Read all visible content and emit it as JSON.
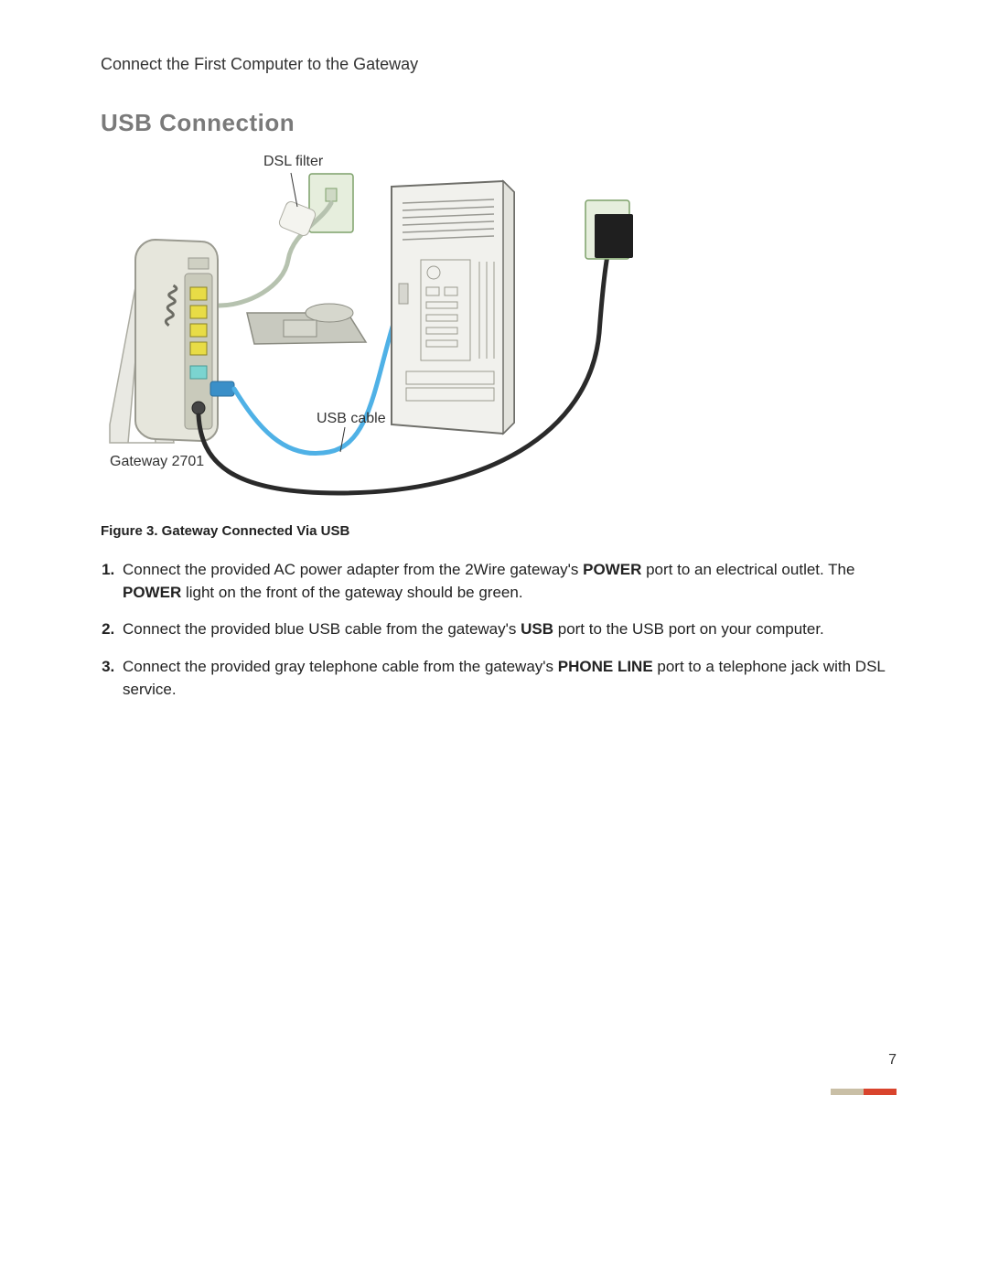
{
  "breadcrumb": "Connect the First Computer to the Gateway",
  "section_title": "USB Connection",
  "figure": {
    "labels": {
      "dsl_filter": "DSL filter",
      "usb_cable": "USB cable",
      "gateway": "Gateway 2701"
    },
    "caption": "Figure 3. Gateway Connected Via USB",
    "colors": {
      "gateway_body": "#e6e6dc",
      "gateway_outline": "#9a9a90",
      "ports_bg": "#c9cabb",
      "port_yellow": "#e8dc46",
      "port_teal": "#7bd4d0",
      "usb_cable": "#4fb1e6",
      "power_cable": "#2a2a2a",
      "dsl_cable": "#b6c2af",
      "pc_body": "#f1f1ed",
      "pc_outline": "#6f6f6a",
      "pc_grill": "#999993",
      "wall_plate": "#e6eedd",
      "wall_plate_outline": "#7da06a",
      "power_adapter": "#1f1f1f",
      "stand": "#e9e9e3",
      "stand_outline": "#acaca2",
      "phone_base": "#c8c9bf",
      "phone_outline": "#8b8c82",
      "label_text": "#333333"
    },
    "label_fontsize": 16
  },
  "steps": {
    "items": [
      {
        "prefix": "Connect the provided AC power adapter from the 2Wire gateway's ",
        "bold1": "POWER",
        "mid1": " port to an electrical outlet. The ",
        "bold2": "POWER",
        "suffix": " light on the front of the gateway should be green."
      },
      {
        "prefix": "Connect the provided blue USB cable from the gateway's ",
        "bold1": "USB",
        "mid1": " port to the USB port on your computer.",
        "bold2": "",
        "suffix": ""
      },
      {
        "prefix": "Connect the provided gray telephone cable from the gateway's ",
        "bold1": "PHONE LINE",
        "mid1": " port to a telephone jack with DSL service.",
        "bold2": "",
        "suffix": ""
      }
    ]
  },
  "page_number": "7",
  "footer_accent": {
    "segments": [
      {
        "width": 36,
        "color": "#c9bfa6"
      },
      {
        "width": 36,
        "color": "#d9442d"
      }
    ]
  }
}
